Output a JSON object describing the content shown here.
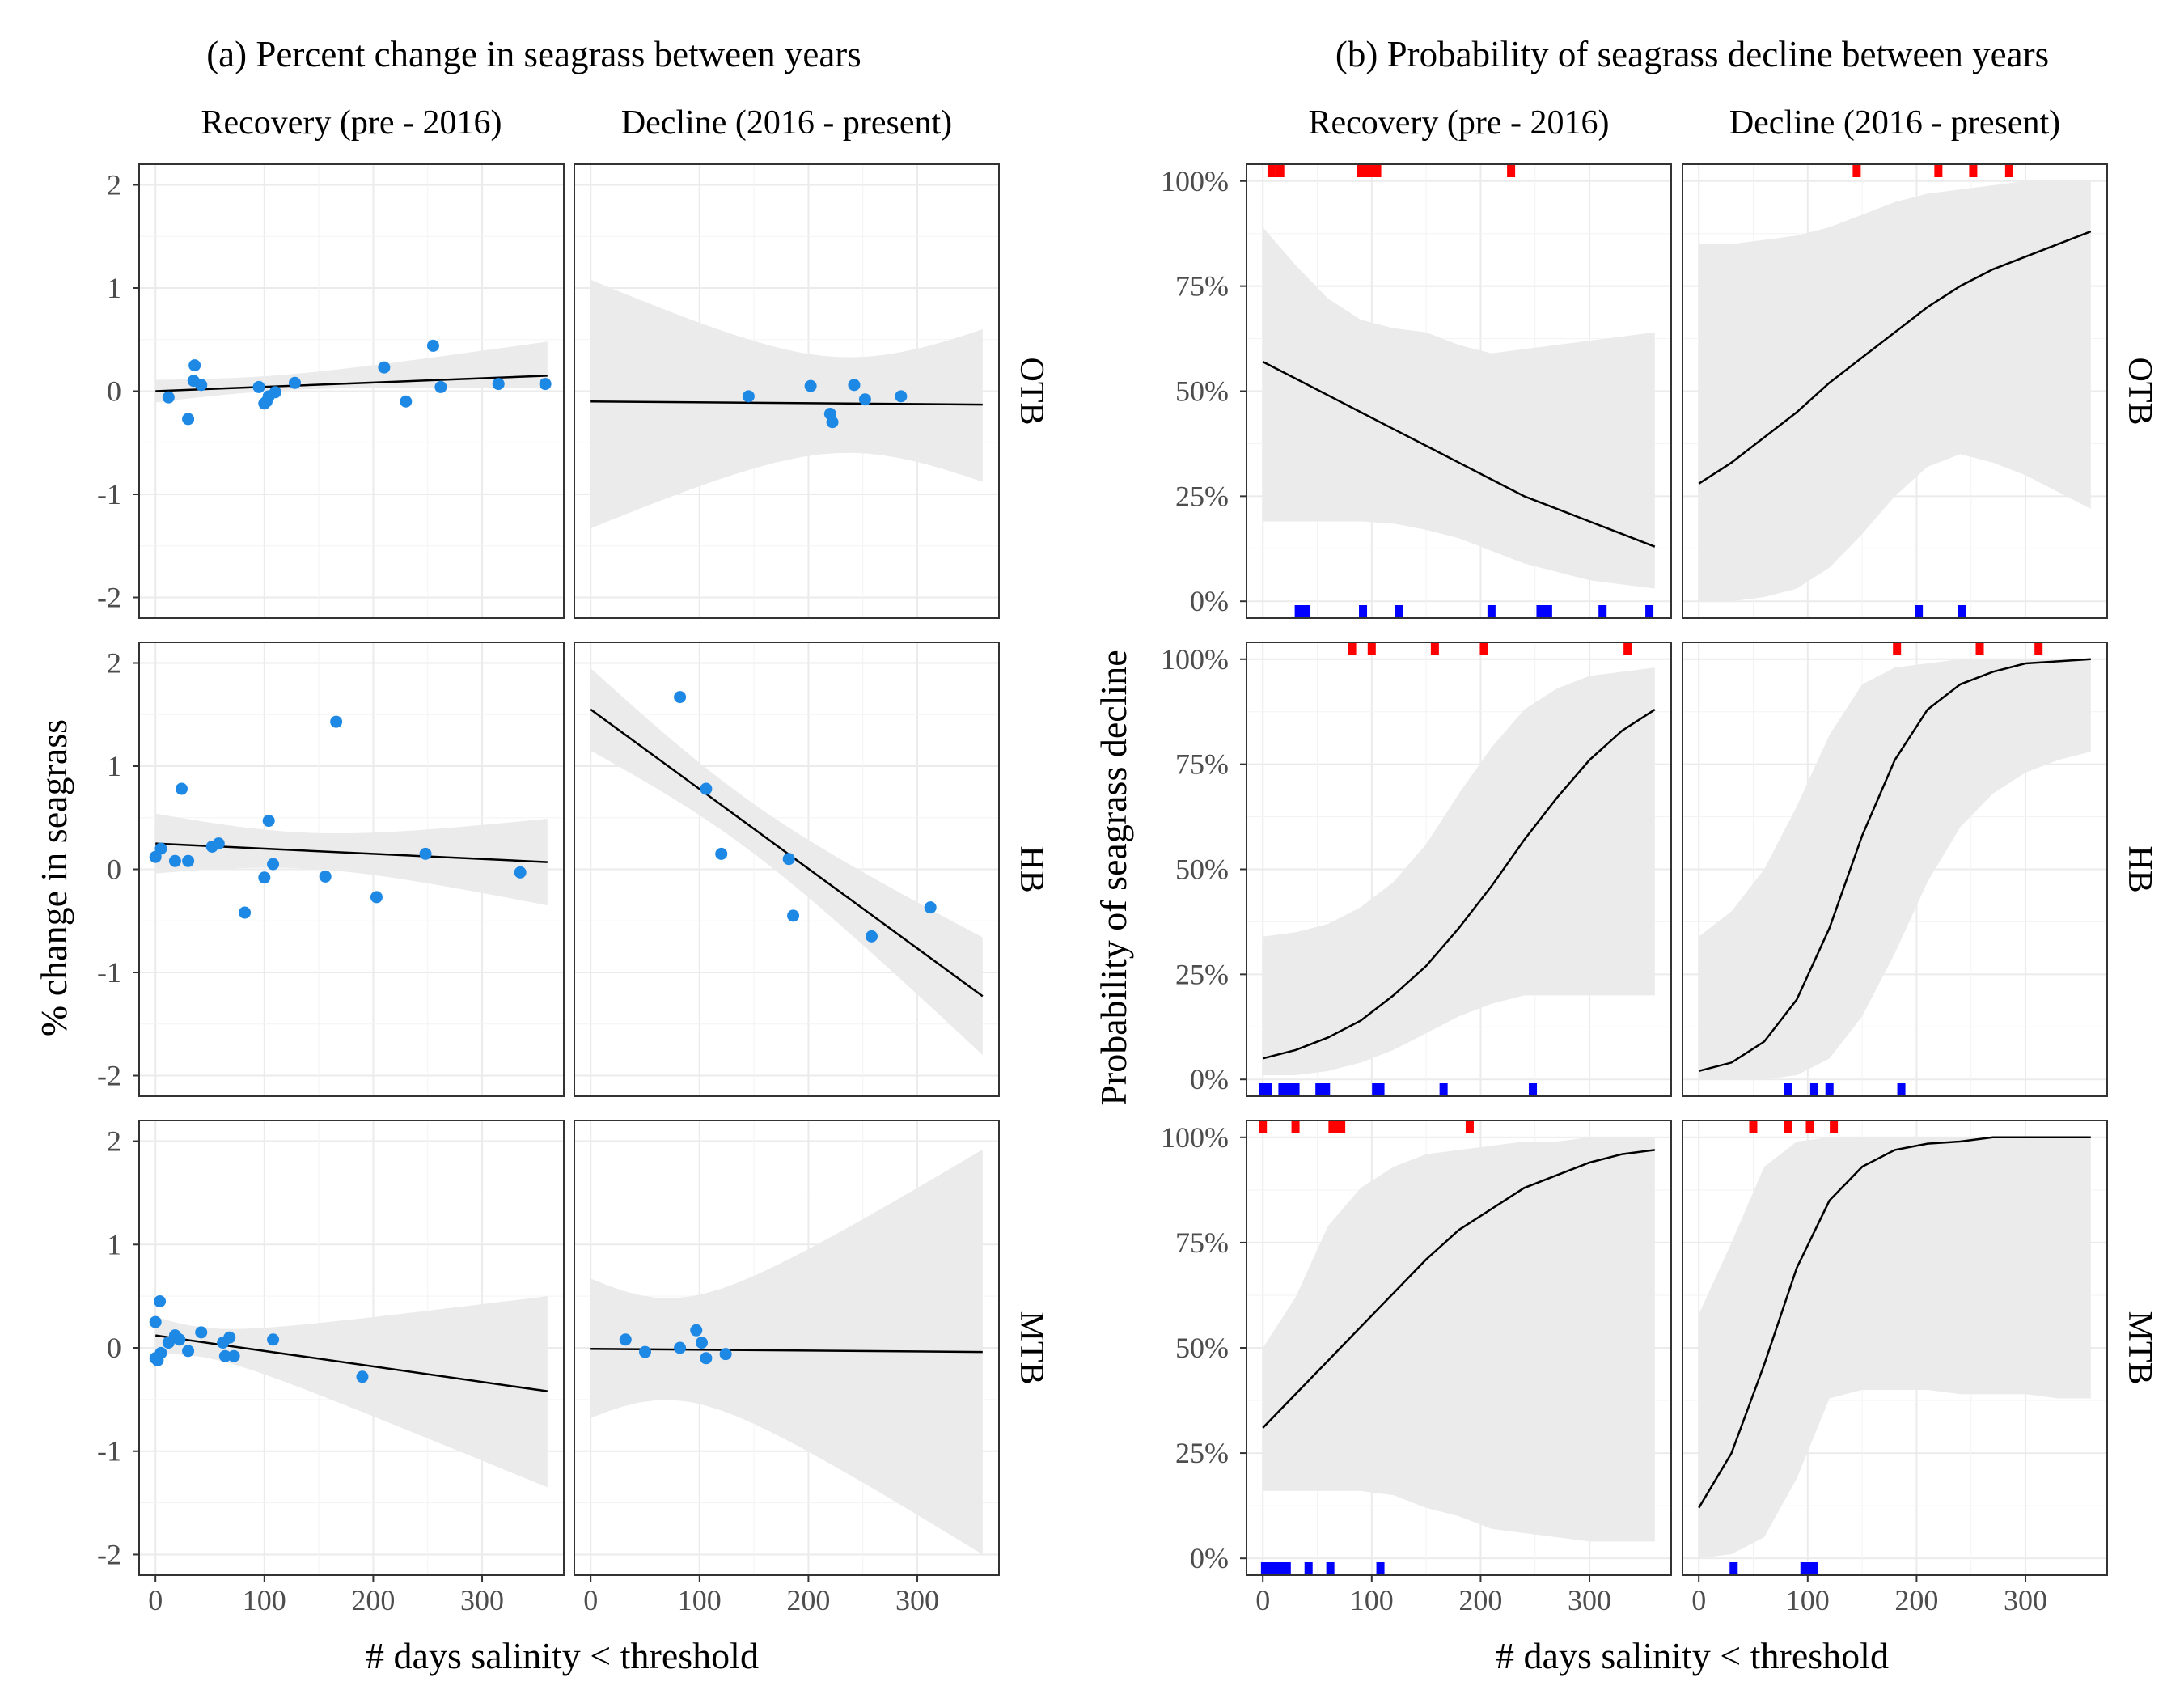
{
  "figure": {
    "panel_a_title": "(a) Percent change in seagrass between years",
    "panel_b_title": "(b) Probability of seagrass decline between years",
    "x_axis_label": "# days salinity < threshold"
  },
  "chart_data": [
    {
      "type": "scatter",
      "title": "(a) Percent change in seagrass between years",
      "xlabel": "# days salinity < threshold",
      "ylabel": "% change in seagrass",
      "xlim": [
        -15,
        375
      ],
      "ylim": [
        -2.2,
        2.2
      ],
      "x_ticks": [
        0,
        100,
        200,
        300
      ],
      "y_ticks": [
        2,
        1,
        0,
        -1,
        -2
      ],
      "x_tick_labels": [
        "0",
        "100",
        "200",
        "300"
      ],
      "y_tick_labels": [
        "2",
        "1",
        "0",
        "-1",
        "-2"
      ],
      "col_labels": [
        "Recovery (pre - 2016)",
        "Decline (2016 - present)"
      ],
      "row_labels": [
        "OTB",
        "HB",
        "MTB"
      ],
      "grid": true,
      "point_color": "#1e88e5",
      "line_color": "#000000",
      "band_color": "#ebebeb",
      "facets": [
        {
          "row": "OTB",
          "col": "Recovery (pre - 2016)",
          "points": [
            [
              12,
              -0.06
            ],
            [
              30,
              -0.27
            ],
            [
              35,
              0.1
            ],
            [
              36,
              0.25
            ],
            [
              42,
              0.06
            ],
            [
              95,
              0.04
            ],
            [
              100,
              -0.12
            ],
            [
              102,
              -0.1
            ],
            [
              104,
              -0.05
            ],
            [
              110,
              -0.01
            ],
            [
              128,
              0.08
            ],
            [
              210,
              0.23
            ],
            [
              230,
              -0.1
            ],
            [
              255,
              0.44
            ],
            [
              262,
              0.04
            ],
            [
              315,
              0.07
            ],
            [
              358,
              0.07
            ]
          ],
          "fit": [
            [
              0,
              0.0
            ],
            [
              360,
              0.15
            ]
          ],
          "band_lower": [
            -0.11,
            0.03
          ],
          "band_upper": [
            0.11,
            0.48
          ],
          "band_x": [
            0,
            360
          ]
        },
        {
          "row": "OTB",
          "col": "Decline (2016 - present)",
          "points": [
            [
              145,
              -0.05
            ],
            [
              202,
              0.05
            ],
            [
              220,
              -0.22
            ],
            [
              222,
              -0.3
            ],
            [
              242,
              0.06
            ],
            [
              252,
              -0.08
            ],
            [
              285,
              -0.05
            ]
          ],
          "fit": [
            [
              0,
              -0.1
            ],
            [
              360,
              -0.13
            ]
          ],
          "band_lower": [
            -1.33,
            -0.88
          ],
          "band_upper": [
            1.08,
            0.6
          ],
          "band_x": [
            0,
            360
          ]
        },
        {
          "row": "HB",
          "col": "Recovery (pre - 2016)",
          "points": [
            [
              0,
              0.12
            ],
            [
              5,
              0.2
            ],
            [
              18,
              0.08
            ],
            [
              24,
              0.78
            ],
            [
              30,
              0.08
            ],
            [
              52,
              0.22
            ],
            [
              58,
              0.25
            ],
            [
              82,
              -0.42
            ],
            [
              100,
              -0.08
            ],
            [
              104,
              0.47
            ],
            [
              108,
              0.05
            ],
            [
              156,
              -0.07
            ],
            [
              166,
              1.43
            ],
            [
              203,
              -0.27
            ],
            [
              248,
              0.15
            ],
            [
              335,
              -0.03
            ]
          ],
          "fit": [
            [
              0,
              0.25
            ],
            [
              360,
              0.07
            ]
          ],
          "band_lower": [
            -0.04,
            -0.35
          ],
          "band_upper": [
            0.54,
            0.49
          ],
          "band_x": [
            0,
            360
          ]
        },
        {
          "row": "HB",
          "col": "Decline (2016 - present)",
          "points": [
            [
              82,
              1.67
            ],
            [
              106,
              0.78
            ],
            [
              120,
              0.15
            ],
            [
              182,
              0.1
            ],
            [
              186,
              -0.45
            ],
            [
              258,
              -0.65
            ],
            [
              312,
              -0.37
            ]
          ],
          "fit": [
            [
              0,
              1.55
            ],
            [
              360,
              -1.23
            ]
          ],
          "band_lower": [
            1.15,
            -1.8
          ],
          "band_upper": [
            1.95,
            -0.66
          ],
          "band_x": [
            0,
            360
          ]
        },
        {
          "row": "MTB",
          "col": "Recovery (pre - 2016)",
          "points": [
            [
              0,
              0.25
            ],
            [
              0,
              -0.1
            ],
            [
              2,
              -0.12
            ],
            [
              4,
              0.45
            ],
            [
              5,
              -0.05
            ],
            [
              12,
              0.05
            ],
            [
              18,
              0.12
            ],
            [
              22,
              0.08
            ],
            [
              30,
              -0.03
            ],
            [
              42,
              0.15
            ],
            [
              62,
              0.05
            ],
            [
              64,
              -0.08
            ],
            [
              68,
              0.1
            ],
            [
              72,
              -0.08
            ],
            [
              108,
              0.08
            ],
            [
              190,
              -0.28
            ]
          ],
          "fit": [
            [
              0,
              0.12
            ],
            [
              360,
              -0.42
            ]
          ],
          "band_lower": [
            -0.06,
            -1.35
          ],
          "band_upper": [
            0.3,
            0.5
          ],
          "band_x": [
            0,
            360
          ]
        },
        {
          "row": "MTB",
          "col": "Decline (2016 - present)",
          "points": [
            [
              32,
              0.08
            ],
            [
              50,
              -0.04
            ],
            [
              82,
              0.0
            ],
            [
              97,
              0.17
            ],
            [
              102,
              0.05
            ],
            [
              106,
              -0.1
            ],
            [
              124,
              -0.06
            ]
          ],
          "fit": [
            [
              0,
              -0.01
            ],
            [
              360,
              -0.04
            ]
          ],
          "band_lower": [
            -0.68,
            -2.0
          ],
          "band_upper": [
            0.67,
            1.92
          ],
          "band_x": [
            0,
            360
          ]
        }
      ]
    },
    {
      "type": "line",
      "title": "(b) Probability of seagrass decline between years",
      "xlabel": "# days salinity < threshold",
      "ylabel": "Probability of seagrass decline",
      "xlim": [
        -15,
        375
      ],
      "ylim": [
        -0.04,
        1.04
      ],
      "x_ticks": [
        0,
        100,
        200,
        300
      ],
      "y_ticks": [
        1,
        0.75,
        0.5,
        0.25,
        0
      ],
      "x_tick_labels": [
        "0",
        "100",
        "200",
        "300"
      ],
      "y_tick_labels": [
        "100%",
        "75%",
        "50%",
        "25%",
        "0%"
      ],
      "col_labels": [
        "Recovery (pre - 2016)",
        "Decline (2016 - present)"
      ],
      "row_labels": [
        "OTB",
        "HB",
        "MTB"
      ],
      "grid": true,
      "rug_decline_color": "#ff0000",
      "rug_no_decline_color": "#0000ff",
      "line_color": "#000000",
      "band_color": "#ebebeb",
      "facets": [
        {
          "row": "OTB",
          "col": "Recovery (pre - 2016)",
          "x": [
            0,
            30,
            60,
            90,
            120,
            150,
            180,
            210,
            240,
            270,
            300,
            330,
            360
          ],
          "y": [
            0.57,
            0.53,
            0.49,
            0.45,
            0.41,
            0.37,
            0.33,
            0.29,
            0.25,
            0.22,
            0.19,
            0.16,
            0.13
          ],
          "lower": [
            0.19,
            0.19,
            0.19,
            0.19,
            0.185,
            0.17,
            0.15,
            0.12,
            0.09,
            0.07,
            0.05,
            0.04,
            0.03
          ],
          "upper": [
            0.89,
            0.8,
            0.72,
            0.67,
            0.65,
            0.64,
            0.61,
            0.59,
            0.6,
            0.61,
            0.62,
            0.63,
            0.64
          ],
          "rug_decline": [
            8,
            16,
            90,
            95,
            100,
            102,
            105,
            228
          ],
          "rug_no_decline": [
            33,
            36,
            40,
            92,
            125,
            210,
            255,
            262,
            312,
            355
          ]
        },
        {
          "row": "OTB",
          "col": "Decline (2016 - present)",
          "x": [
            0,
            30,
            60,
            90,
            120,
            150,
            180,
            210,
            240,
            270,
            300,
            330,
            360
          ],
          "y": [
            0.28,
            0.33,
            0.39,
            0.45,
            0.52,
            0.58,
            0.64,
            0.7,
            0.75,
            0.79,
            0.82,
            0.85,
            0.88
          ],
          "lower": [
            0.0,
            0.0,
            0.01,
            0.03,
            0.08,
            0.16,
            0.25,
            0.32,
            0.35,
            0.33,
            0.3,
            0.26,
            0.22
          ],
          "upper": [
            0.85,
            0.85,
            0.86,
            0.87,
            0.89,
            0.92,
            0.95,
            0.97,
            0.98,
            0.99,
            1.0,
            1.0,
            1.0
          ],
          "rug_decline": [
            145,
            220,
            252,
            285
          ],
          "rug_no_decline": [
            202,
            242
          ]
        },
        {
          "row": "HB",
          "col": "Recovery (pre - 2016)",
          "x": [
            0,
            30,
            60,
            90,
            120,
            150,
            180,
            210,
            240,
            270,
            300,
            330,
            360
          ],
          "y": [
            0.05,
            0.07,
            0.1,
            0.14,
            0.2,
            0.27,
            0.36,
            0.46,
            0.57,
            0.67,
            0.76,
            0.83,
            0.88
          ],
          "lower": [
            0.01,
            0.01,
            0.02,
            0.04,
            0.07,
            0.11,
            0.15,
            0.18,
            0.2,
            0.2,
            0.2,
            0.2,
            0.2
          ],
          "upper": [
            0.34,
            0.35,
            0.37,
            0.41,
            0.47,
            0.56,
            0.68,
            0.79,
            0.88,
            0.93,
            0.96,
            0.97,
            0.98
          ],
          "rug_decline": [
            82,
            100,
            158,
            203,
            335
          ],
          "rug_no_decline": [
            0,
            5,
            18,
            24,
            30,
            52,
            58,
            104,
            108,
            166,
            248
          ]
        },
        {
          "row": "HB",
          "col": "Decline (2016 - present)",
          "x": [
            0,
            30,
            60,
            90,
            120,
            150,
            180,
            210,
            240,
            270,
            300,
            330,
            360
          ],
          "y": [
            0.02,
            0.04,
            0.09,
            0.19,
            0.36,
            0.58,
            0.76,
            0.88,
            0.94,
            0.97,
            0.99,
            0.995,
            1.0
          ],
          "lower": [
            0.0,
            0.0,
            0.0,
            0.01,
            0.05,
            0.15,
            0.3,
            0.47,
            0.6,
            0.68,
            0.73,
            0.76,
            0.78
          ],
          "upper": [
            0.34,
            0.4,
            0.5,
            0.65,
            0.82,
            0.94,
            0.98,
            0.99,
            1.0,
            1.0,
            1.0,
            1.0,
            1.0
          ],
          "rug_decline": [
            182,
            258,
            312
          ],
          "rug_no_decline": [
            82,
            106,
            120,
            186
          ]
        },
        {
          "row": "MTB",
          "col": "Recovery (pre - 2016)",
          "x": [
            0,
            30,
            60,
            90,
            120,
            150,
            180,
            210,
            240,
            270,
            300,
            330,
            360
          ],
          "y": [
            0.31,
            0.39,
            0.47,
            0.55,
            0.63,
            0.71,
            0.78,
            0.83,
            0.88,
            0.91,
            0.94,
            0.96,
            0.97
          ],
          "lower": [
            0.16,
            0.16,
            0.16,
            0.16,
            0.15,
            0.12,
            0.1,
            0.07,
            0.06,
            0.05,
            0.04,
            0.04,
            0.04
          ],
          "upper": [
            0.5,
            0.62,
            0.79,
            0.88,
            0.93,
            0.96,
            0.97,
            0.98,
            0.99,
            0.99,
            1.0,
            1.0,
            1.0
          ],
          "rug_decline": [
            0,
            30,
            64,
            68,
            72,
            190
          ],
          "rug_no_decline": [
            2,
            4,
            5,
            12,
            18,
            22,
            42,
            62,
            108
          ]
        },
        {
          "row": "MTB",
          "col": "Decline (2016 - present)",
          "x": [
            0,
            30,
            60,
            90,
            120,
            150,
            180,
            210,
            240,
            270,
            300,
            330,
            360
          ],
          "y": [
            0.12,
            0.25,
            0.46,
            0.69,
            0.85,
            0.93,
            0.97,
            0.985,
            0.99,
            1.0,
            1.0,
            1.0,
            1.0
          ],
          "lower": [
            0.0,
            0.01,
            0.05,
            0.19,
            0.38,
            0.4,
            0.4,
            0.4,
            0.39,
            0.39,
            0.39,
            0.38,
            0.38
          ],
          "upper": [
            0.58,
            0.75,
            0.93,
            0.99,
            1.0,
            1.0,
            1.0,
            1.0,
            1.0,
            1.0,
            1.0,
            1.0,
            1.0
          ],
          "rug_decline": [
            50,
            82,
            102,
            124
          ],
          "rug_no_decline": [
            32,
            97,
            100,
            106
          ]
        }
      ]
    }
  ]
}
